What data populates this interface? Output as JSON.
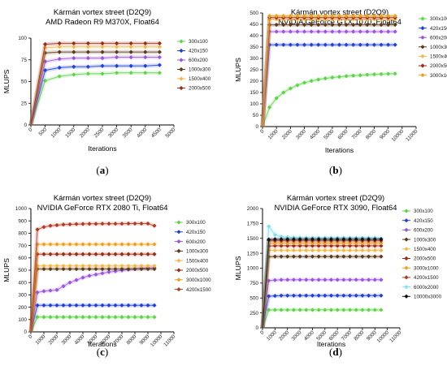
{
  "chart_data": [
    {
      "type": "line",
      "caption": [
        "(",
        "a",
        ")"
      ],
      "title": "Kármán vortex street (D2Q9)",
      "subtitle": "AMD Radeon R9 M370X, Float64",
      "xlabel": "Iterations",
      "ylabel": "MLUPS",
      "xlim": [
        0,
        5000
      ],
      "ylim": [
        0,
        100
      ],
      "xticks": [
        "0",
        "500",
        "1000",
        "1500",
        "2000",
        "2500",
        "3000",
        "3500",
        "4000",
        "4500",
        "5000"
      ],
      "yticks": [
        "0",
        "25",
        "50",
        "75",
        "100"
      ],
      "x": [
        0,
        500,
        1000,
        1500,
        2000,
        2500,
        3000,
        3500,
        4000,
        4500
      ],
      "legend_position": "right",
      "series": [
        {
          "name": "300x100",
          "color": "#5fd44a",
          "values": [
            0,
            51,
            56,
            58,
            59,
            59,
            60,
            60,
            60,
            60
          ]
        },
        {
          "name": "420x150",
          "color": "#1f3fd8",
          "values": [
            0,
            63,
            66,
            67,
            67,
            68,
            68,
            68,
            68,
            69
          ]
        },
        {
          "name": "600x200",
          "color": "#9a55e0",
          "values": [
            0,
            73,
            76,
            77,
            77,
            77,
            78,
            78,
            78,
            78
          ]
        },
        {
          "name": "1000x300",
          "color": "#5a3a1a",
          "values": [
            0,
            83,
            84,
            84,
            84,
            84,
            84,
            84,
            84,
            84
          ]
        },
        {
          "name": "1500x400",
          "color": "#f2b84b",
          "values": [
            0,
            89,
            90,
            90,
            90,
            90,
            90,
            90,
            90,
            90
          ]
        },
        {
          "name": "2000x500",
          "color": "#9b2a1a",
          "values": [
            0,
            93,
            94,
            94,
            94,
            94,
            94,
            94,
            94,
            94
          ]
        }
      ]
    },
    {
      "type": "line",
      "caption": [
        "(",
        "b",
        ")"
      ],
      "title": "Kármán vortex street (D2Q9)",
      "subtitle": "NVIDIA GeForce GTX 1070, Float64",
      "xlabel": "Iterations",
      "ylabel": "MLUPS",
      "xlim": [
        0,
        11000
      ],
      "ylim": [
        0,
        500
      ],
      "xticks": [
        "0",
        "1000",
        "2000",
        "3000",
        "4000",
        "5000",
        "6000",
        "7000",
        "8000",
        "9000",
        "10000",
        "11000"
      ],
      "yticks": [
        "0",
        "50",
        "100",
        "150",
        "200",
        "250",
        "300",
        "350",
        "400",
        "450",
        "500"
      ],
      "x": [
        0,
        500,
        1000,
        1500,
        2000,
        2500,
        3000,
        3500,
        4000,
        4500,
        5000,
        5500,
        6000,
        6500,
        7000,
        7500,
        8000,
        8500,
        9000,
        9500
      ],
      "legend_position": "right",
      "series": [
        {
          "name": "300x100",
          "color": "#5fd44a",
          "values": [
            0,
            85,
            125,
            150,
            168,
            182,
            193,
            201,
            207,
            212,
            216,
            219,
            222,
            224,
            226,
            228,
            230,
            231,
            232,
            233
          ]
        },
        {
          "name": "420x150",
          "color": "#1f3fd8",
          "values": [
            0,
            360,
            360,
            360,
            360,
            360,
            360,
            360,
            360,
            360,
            360,
            360,
            360,
            360,
            360,
            360,
            360,
            360,
            360,
            360
          ]
        },
        {
          "name": "600x200",
          "color": "#9a55e0",
          "values": [
            0,
            418,
            418,
            418,
            418,
            418,
            418,
            418,
            418,
            418,
            418,
            418,
            418,
            418,
            418,
            418,
            418,
            418,
            418,
            418
          ]
        },
        {
          "name": "1000x300",
          "color": "#5a3a1a",
          "values": [
            0,
            448,
            448,
            448,
            448,
            448,
            448,
            448,
            448,
            448,
            448,
            448,
            448,
            448,
            448,
            448,
            448,
            448,
            448,
            448
          ]
        },
        {
          "name": "1500x400",
          "color": "#f2b84b",
          "values": [
            0,
            472,
            472,
            472,
            472,
            472,
            472,
            472,
            472,
            472,
            472,
            472,
            472,
            472,
            472,
            472,
            472,
            472,
            472,
            472
          ]
        },
        {
          "name": "2000x500",
          "color": "#9b2a1a",
          "values": [
            0,
            480,
            480,
            480,
            480,
            480,
            480,
            480,
            480,
            480,
            480,
            480,
            480,
            480,
            480,
            480,
            480,
            480,
            480,
            480
          ]
        },
        {
          "name": "3000x1000",
          "color": "#f0a020",
          "values": [
            0,
            487,
            487,
            487,
            487,
            487,
            487,
            487,
            487,
            487,
            487,
            487,
            487,
            487,
            487,
            487,
            487,
            487,
            487,
            487
          ]
        }
      ]
    },
    {
      "type": "line",
      "caption": [
        "(",
        "c",
        ")"
      ],
      "title": "Kármán vortex street (D2Q9)",
      "subtitle": "NVIDIA GeForce RTX 2080 Ti, Float64",
      "xlabel": "Iterations",
      "ylabel": "MLUPS",
      "xlim": [
        0,
        11000
      ],
      "ylim": [
        0,
        1000
      ],
      "xticks": [
        "0",
        "1000",
        "2000",
        "3000",
        "4000",
        "5000",
        "6000",
        "7000",
        "8000",
        "9000",
        "10000",
        "11000"
      ],
      "yticks": [
        "0",
        "100",
        "200",
        "300",
        "400",
        "500",
        "600",
        "700",
        "800",
        "900",
        "1000"
      ],
      "x": [
        0,
        500,
        1000,
        1500,
        2000,
        2500,
        3000,
        3500,
        4000,
        4500,
        5000,
        5500,
        6000,
        6500,
        7000,
        7500,
        8000,
        8500,
        9000,
        9500
      ],
      "legend_position": "right",
      "series": [
        {
          "name": "300x100",
          "color": "#5fd44a",
          "values": [
            0,
            120,
            120,
            120,
            120,
            120,
            120,
            120,
            120,
            120,
            120,
            120,
            120,
            120,
            120,
            120,
            120,
            120,
            120,
            120
          ]
        },
        {
          "name": "420x150",
          "color": "#1f3fd8",
          "values": [
            0,
            215,
            215,
            215,
            215,
            215,
            215,
            215,
            215,
            215,
            215,
            215,
            215,
            215,
            215,
            215,
            215,
            215,
            215,
            215
          ]
        },
        {
          "name": "600x200",
          "color": "#9a55e0",
          "values": [
            0,
            320,
            330,
            335,
            340,
            370,
            400,
            420,
            440,
            455,
            465,
            475,
            485,
            492,
            498,
            505,
            510,
            515,
            518,
            520
          ]
        },
        {
          "name": "1000x300",
          "color": "#5a3a1a",
          "values": [
            0,
            510,
            510,
            510,
            510,
            510,
            510,
            510,
            510,
            510,
            510,
            510,
            510,
            510,
            510,
            510,
            510,
            510,
            510,
            510
          ]
        },
        {
          "name": "1500x400",
          "color": "#f2b84b",
          "values": [
            0,
            535,
            535,
            535,
            535,
            535,
            535,
            535,
            535,
            535,
            535,
            535,
            535,
            535,
            535,
            535,
            535,
            535,
            535,
            535
          ]
        },
        {
          "name": "2000x500",
          "color": "#9b2a1a",
          "values": [
            0,
            630,
            630,
            630,
            630,
            630,
            630,
            630,
            630,
            630,
            630,
            630,
            630,
            630,
            630,
            630,
            630,
            630,
            630,
            630
          ]
        },
        {
          "name": "3000x1000",
          "color": "#f0a020",
          "values": [
            0,
            710,
            710,
            710,
            710,
            710,
            710,
            710,
            710,
            710,
            710,
            710,
            710,
            710,
            710,
            710,
            710,
            710,
            710,
            710
          ]
        },
        {
          "name": "4200x1500",
          "color": "#b03a24",
          "values": [
            0,
            830,
            850,
            860,
            865,
            870,
            872,
            874,
            875,
            876,
            876,
            877,
            877,
            877,
            877,
            878,
            878,
            878,
            878,
            860
          ]
        }
      ]
    },
    {
      "type": "line",
      "caption": [
        "(",
        "d",
        ")"
      ],
      "title": "Kármán vortex street (D2Q9)",
      "subtitle": "NVIDIA GeForce RTX 3090, Float64",
      "xlabel": "Iterations",
      "ylabel": "MLUPS",
      "xlim": [
        0,
        11000
      ],
      "ylim": [
        0,
        2000
      ],
      "xticks": [
        "0",
        "1000",
        "2000",
        "3000",
        "4000",
        "5000",
        "6000",
        "7000",
        "8000",
        "9000",
        "10000",
        "11000"
      ],
      "yticks": [
        "0",
        "250",
        "500",
        "750",
        "1000",
        "1250",
        "1500",
        "1750",
        "2000"
      ],
      "x": [
        0,
        500,
        1000,
        1500,
        2000,
        2500,
        3000,
        3500,
        4000,
        4500,
        5000,
        5500,
        6000,
        6500,
        7000,
        7500,
        8000,
        8500,
        9000,
        9500
      ],
      "legend_position": "right",
      "series": [
        {
          "name": "300x100",
          "color": "#5fd44a",
          "values": [
            0,
            300,
            300,
            300,
            300,
            300,
            300,
            300,
            300,
            300,
            300,
            300,
            300,
            300,
            300,
            300,
            300,
            300,
            300,
            300
          ]
        },
        {
          "name": "420x150",
          "color": "#1f3fd8",
          "values": [
            0,
            530,
            535,
            540,
            540,
            540,
            540,
            540,
            540,
            540,
            540,
            540,
            540,
            540,
            540,
            540,
            540,
            540,
            540,
            540
          ]
        },
        {
          "name": "600x200",
          "color": "#9a55e0",
          "values": [
            0,
            790,
            800,
            805,
            805,
            805,
            805,
            805,
            805,
            805,
            805,
            805,
            805,
            805,
            805,
            805,
            805,
            805,
            805,
            805
          ]
        },
        {
          "name": "1000x300",
          "color": "#5a3a1a",
          "values": [
            0,
            1190,
            1195,
            1195,
            1195,
            1195,
            1195,
            1195,
            1195,
            1195,
            1195,
            1195,
            1195,
            1195,
            1195,
            1195,
            1195,
            1195,
            1195,
            1195
          ]
        },
        {
          "name": "1500x400",
          "color": "#f2b84b",
          "values": [
            0,
            1300,
            1300,
            1300,
            1300,
            1300,
            1300,
            1300,
            1300,
            1300,
            1300,
            1300,
            1300,
            1300,
            1300,
            1300,
            1300,
            1300,
            1300,
            1300
          ]
        },
        {
          "name": "2000x500",
          "color": "#9b2a1a",
          "values": [
            0,
            1370,
            1375,
            1375,
            1375,
            1375,
            1375,
            1375,
            1375,
            1375,
            1375,
            1375,
            1375,
            1375,
            1375,
            1375,
            1375,
            1375,
            1375,
            1375
          ]
        },
        {
          "name": "3000x1000",
          "color": "#f0a020",
          "values": [
            0,
            1420,
            1420,
            1420,
            1420,
            1420,
            1420,
            1420,
            1420,
            1420,
            1420,
            1420,
            1420,
            1420,
            1420,
            1420,
            1420,
            1420,
            1420,
            1420
          ]
        },
        {
          "name": "4200x1500",
          "color": "#b03a24",
          "values": [
            0,
            1460,
            1460,
            1460,
            1460,
            1460,
            1460,
            1460,
            1460,
            1460,
            1460,
            1460,
            1460,
            1460,
            1460,
            1460,
            1460,
            1460,
            1460,
            1460
          ]
        },
        {
          "name": "6000x2000",
          "color": "#7fe0f0",
          "values": [
            0,
            1700,
            1560,
            1530,
            1520,
            1515,
            1512,
            1510,
            1510,
            1510,
            1510,
            1510,
            1510,
            1510,
            1510,
            1510,
            1510,
            1510,
            1510,
            1500
          ]
        },
        {
          "name": "10000x3000",
          "color": "#111111",
          "values": [
            0,
            1480,
            1485,
            1485,
            1485,
            1485,
            1485,
            1485,
            1485,
            1485,
            1485,
            1485,
            1485,
            1485,
            1485,
            1485,
            1485,
            1485,
            1485,
            1485
          ]
        }
      ]
    }
  ]
}
